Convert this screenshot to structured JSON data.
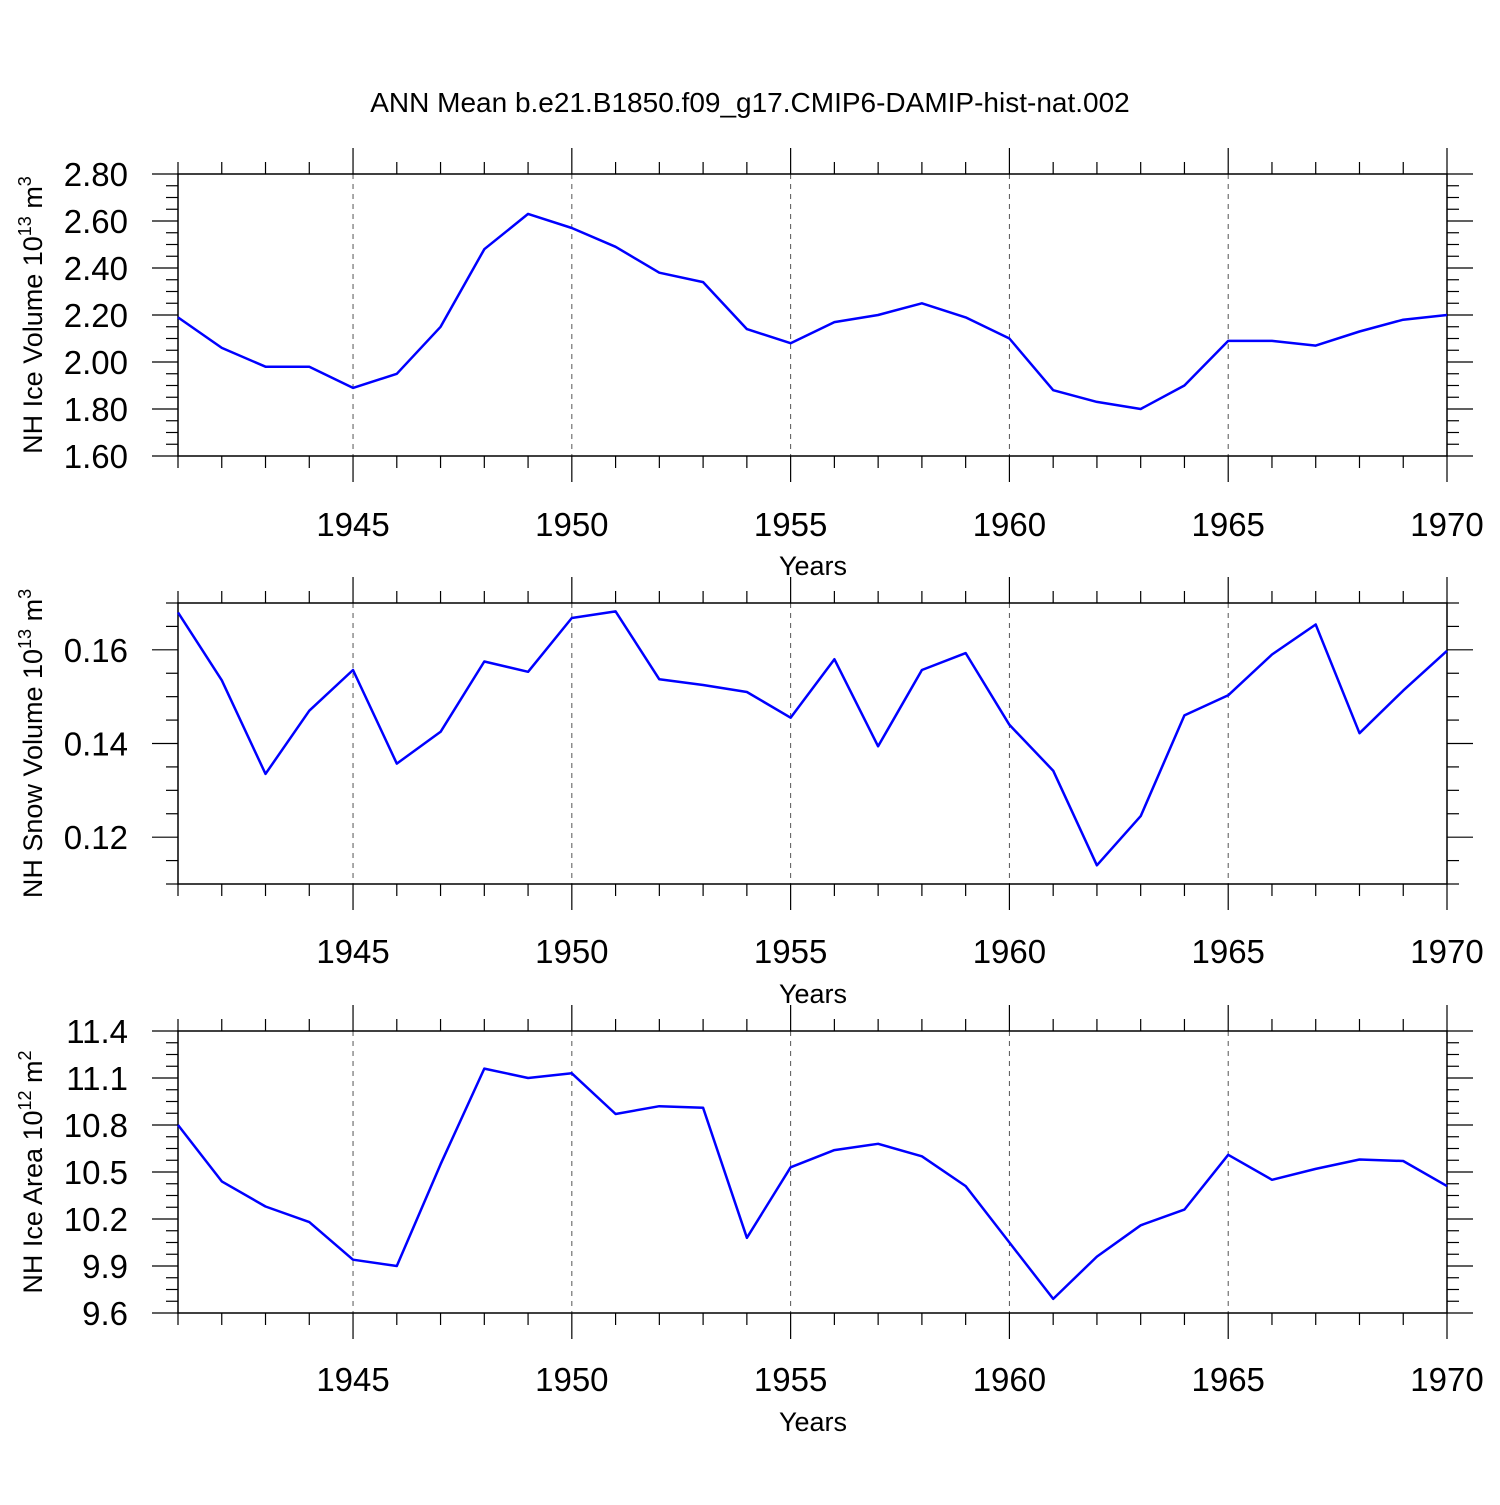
{
  "title": "ANN Mean b.e21.B1850.f09_g17.CMIP6-DAMIP-hist-nat.002",
  "line_color": "#0000ff",
  "chart_data": [
    {
      "type": "line",
      "ylabel": {
        "main": "NH Ice Volume 10",
        "sup": "13",
        "mid": " m",
        "sup2": "3"
      },
      "xlabel": "Years",
      "xlim": [
        1941,
        1970
      ],
      "ylim": [
        1.6,
        2.8
      ],
      "yticks": [
        "1.60",
        "1.80",
        "2.00",
        "2.20",
        "2.40",
        "2.60",
        "2.80"
      ],
      "xticks": [
        "1945",
        "1950",
        "1955",
        "1960",
        "1965",
        "1970"
      ],
      "grid": "vertical dashed at labeled years",
      "x": [
        1941,
        1942,
        1943,
        1944,
        1945,
        1946,
        1947,
        1948,
        1949,
        1950,
        1951,
        1952,
        1953,
        1954,
        1955,
        1956,
        1957,
        1958,
        1959,
        1960,
        1961,
        1962,
        1963,
        1964,
        1965,
        1966,
        1967,
        1968,
        1969,
        1970
      ],
      "series": [
        {
          "values": [
            2.19,
            2.06,
            1.98,
            1.98,
            1.89,
            1.95,
            2.15,
            2.48,
            2.63,
            2.57,
            2.49,
            2.38,
            2.34,
            2.14,
            2.08,
            2.17,
            2.2,
            2.25,
            2.19,
            2.1,
            1.88,
            1.83,
            1.8,
            1.9,
            2.09,
            2.09,
            2.07,
            2.13,
            2.18,
            2.2
          ]
        }
      ]
    },
    {
      "type": "line",
      "ylabel": {
        "main": "NH Snow Volume 10",
        "sup": "13",
        "mid": " m",
        "sup2": "3"
      },
      "xlabel": "Years",
      "xlim": [
        1941,
        1970
      ],
      "ylim": [
        0.11,
        0.17
      ],
      "yticks": [
        "0.12",
        "0.14",
        "0.16"
      ],
      "ytick_values": [
        0.12,
        0.14,
        0.16
      ],
      "xticks": [
        "1945",
        "1950",
        "1955",
        "1960",
        "1965",
        "1970"
      ],
      "grid": "vertical dashed at labeled years",
      "x": [
        1941,
        1942,
        1943,
        1944,
        1945,
        1946,
        1947,
        1948,
        1949,
        1950,
        1951,
        1952,
        1953,
        1954,
        1955,
        1956,
        1957,
        1958,
        1959,
        1960,
        1961,
        1962,
        1963,
        1964,
        1965,
        1966,
        1967,
        1968,
        1969,
        1970
      ],
      "series": [
        {
          "values": [
            0.168,
            0.1535,
            0.1335,
            0.147,
            0.1557,
            0.1357,
            0.1425,
            0.1575,
            0.1553,
            0.1668,
            0.1682,
            0.1537,
            0.1525,
            0.151,
            0.1455,
            0.158,
            0.1394,
            0.1557,
            0.1593,
            0.144,
            0.1342,
            0.114,
            0.1245,
            0.146,
            0.1503,
            0.159,
            0.1654,
            0.1422,
            0.1513,
            0.1598
          ]
        }
      ]
    },
    {
      "type": "line",
      "ylabel": {
        "main": "NH Ice Area 10",
        "sup": "12",
        "mid": " m",
        "sup2": "2"
      },
      "xlabel": "Years",
      "xlim": [
        1941,
        1970
      ],
      "ylim": [
        9.6,
        11.4
      ],
      "yticks": [
        "9.6",
        "9.9",
        "10.2",
        "10.5",
        "10.8",
        "11.1",
        "11.4"
      ],
      "xticks": [
        "1945",
        "1950",
        "1955",
        "1960",
        "1965",
        "1970"
      ],
      "grid": "vertical dashed at labeled years",
      "x": [
        1941,
        1942,
        1943,
        1944,
        1945,
        1946,
        1947,
        1948,
        1949,
        1950,
        1951,
        1952,
        1953,
        1954,
        1955,
        1956,
        1957,
        1958,
        1959,
        1960,
        1961,
        1962,
        1963,
        1964,
        1965,
        1966,
        1967,
        1968,
        1969,
        1970
      ],
      "series": [
        {
          "values": [
            10.8,
            10.44,
            10.28,
            10.18,
            9.94,
            9.9,
            10.55,
            11.16,
            11.1,
            11.13,
            10.87,
            10.92,
            10.91,
            10.08,
            10.53,
            10.64,
            10.68,
            10.6,
            10.41,
            10.05,
            9.69,
            9.96,
            10.16,
            10.26,
            10.61,
            10.45,
            10.52,
            10.58,
            10.57,
            10.41
          ]
        }
      ]
    }
  ]
}
